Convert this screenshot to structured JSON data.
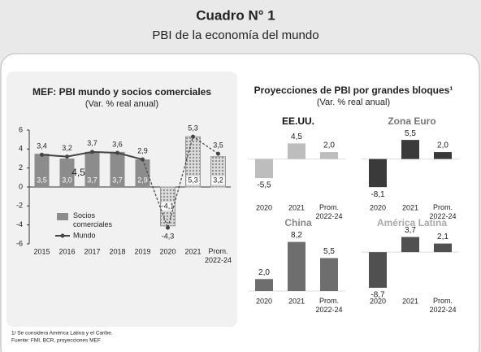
{
  "header": {
    "title": "Cuadro N° 1",
    "subtitle": "PBI de la economía del mundo"
  },
  "group": {
    "title": "Proyecciones de PBI por grandes bloques¹",
    "subtitle": "(Var. % real anual)"
  },
  "chart_data": [
    {
      "type": "combo",
      "title": "MEF: PBI mundo y socios comerciales",
      "subtitle": "(Var. % real anual)",
      "categories": [
        "2015",
        "2016",
        "2017",
        "2018",
        "2019",
        "2020",
        "2021",
        "Prom. 2022-24"
      ],
      "ylim": [
        -6,
        6
      ],
      "yticks": [
        -6,
        -4,
        -2,
        0,
        2,
        4,
        6
      ],
      "grid": false,
      "series": [
        {
          "name": "Socios comerciales",
          "type": "bar",
          "color": "#8c8c8c",
          "values": [
            3.5,
            3.0,
            3.7,
            3.7,
            2.9,
            -4.1,
            5.3,
            3.2
          ],
          "value_labels": [
            "3,5",
            "3,0",
            "3,7",
            "3,7",
            "2,9",
            "-4,1",
            "5,3",
            "3,2"
          ]
        },
        {
          "name": "Mundo",
          "type": "line",
          "color": "#444444",
          "values": [
            3.4,
            3.2,
            3.7,
            3.6,
            2.9,
            -4.3,
            5.3,
            3.5
          ],
          "value_labels": [
            "3,4",
            "3,2",
            "3,7",
            "3,6",
            "2,9",
            "-4,3",
            "5,3",
            "3,5"
          ]
        }
      ],
      "annotations": [
        "4,5"
      ]
    },
    {
      "type": "bar",
      "title": "EE.UU.",
      "title_color": "#111111",
      "color": "#bdbdbd",
      "categories": [
        "2020",
        "2021",
        "Prom. 2022-24"
      ],
      "values": [
        -5.5,
        4.5,
        2.0
      ],
      "value_labels": [
        "-5,5",
        "4,5",
        "2,0"
      ],
      "ylim": [
        -9,
        6
      ]
    },
    {
      "type": "bar",
      "title": "Zona Euro",
      "title_color": "#777777",
      "color": "#3a3a3a",
      "categories": [
        "2020",
        "2021",
        "Prom. 2022-24"
      ],
      "values": [
        -8.1,
        5.5,
        2.0
      ],
      "value_labels": [
        "-8,1",
        "5,5",
        "2,0"
      ],
      "ylim": [
        -9,
        6
      ]
    },
    {
      "type": "bar",
      "title": "China",
      "title_color": "#888888",
      "color": "#6e6e6e",
      "categories": [
        "2020",
        "2021",
        "Prom. 2022-24"
      ],
      "values": [
        2.0,
        8.2,
        5.5
      ],
      "value_labels": [
        "2,0",
        "8,2",
        "5,5"
      ],
      "ylim": [
        0,
        9.5
      ]
    },
    {
      "type": "bar",
      "title": "América Latina",
      "title_color": "#aaaaaa",
      "color": "#505050",
      "categories": [
        "2020",
        "2021",
        "Prom. 2022-24"
      ],
      "values": [
        -8.7,
        3.7,
        2.1
      ],
      "value_labels": [
        "-8,7",
        "3,7",
        "2,1"
      ],
      "ylim": [
        -9.5,
        4
      ]
    }
  ],
  "footnotes": [
    "1/ Se considera América Latina y el Caribe.",
    "Fuente: FMI, BCR, proyecciones MEF"
  ]
}
